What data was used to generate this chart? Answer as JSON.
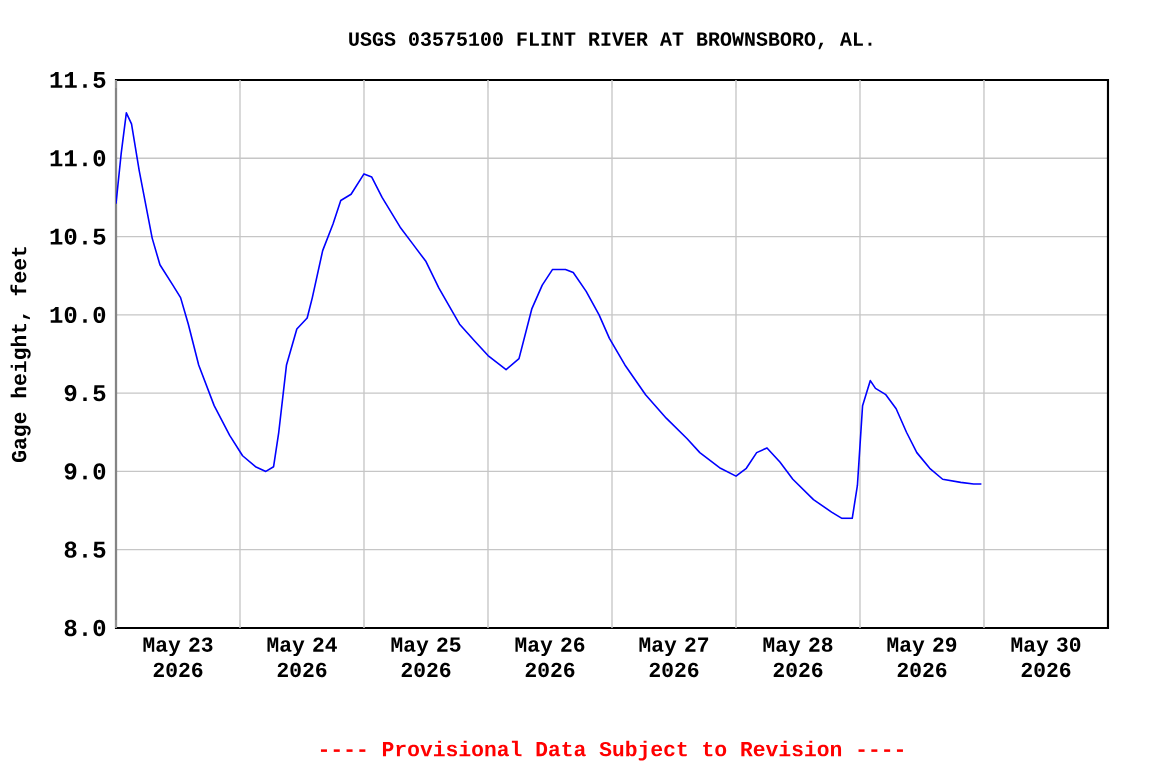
{
  "chart_data": {
    "type": "line",
    "title": "USGS 03575100 FLINT RIVER AT BROWNSBORO, AL.",
    "ylabel": "Gage height, feet",
    "annotations": [
      "---- Provisional Data Subject to Revision ----"
    ],
    "x": [
      "2026-05-23T00:00",
      "2026-05-23T01:00",
      "2026-05-23T02:00",
      "2026-05-23T03:00",
      "2026-05-23T04:30",
      "2026-05-23T07:00",
      "2026-05-23T08:30",
      "2026-05-23T11:00",
      "2026-05-23T12:30",
      "2026-05-23T14:00",
      "2026-05-23T16:00",
      "2026-05-23T19:00",
      "2026-05-23T22:00",
      "2026-05-24T00:30",
      "2026-05-24T03:00",
      "2026-05-24T05:00",
      "2026-05-24T06:30",
      "2026-05-24T07:30",
      "2026-05-24T09:00",
      "2026-05-24T11:00",
      "2026-05-24T13:00",
      "2026-05-24T14:00",
      "2026-05-24T16:00",
      "2026-05-24T18:00",
      "2026-05-24T19:30",
      "2026-05-24T21:30",
      "2026-05-25T00:00",
      "2026-05-25T01:30",
      "2026-05-25T03:30",
      "2026-05-25T07:00",
      "2026-05-25T09:30",
      "2026-05-25T12:00",
      "2026-05-25T14:30",
      "2026-05-25T18:30",
      "2026-05-25T21:30",
      "2026-05-26T00:00",
      "2026-05-26T03:30",
      "2026-05-26T06:00",
      "2026-05-26T08:30",
      "2026-05-26T10:30",
      "2026-05-26T12:30",
      "2026-05-26T15:00",
      "2026-05-26T16:30",
      "2026-05-26T19:00",
      "2026-05-26T21:30",
      "2026-05-26T23:30",
      "2026-05-27T02:30",
      "2026-05-27T06:30",
      "2026-05-27T10:30",
      "2026-05-27T14:30",
      "2026-05-27T17:00",
      "2026-05-27T21:00",
      "2026-05-28T00:00",
      "2026-05-28T02:00",
      "2026-05-28T04:00",
      "2026-05-28T06:00",
      "2026-05-28T08:30",
      "2026-05-28T11:00",
      "2026-05-28T15:00",
      "2026-05-28T18:30",
      "2026-05-28T20:30",
      "2026-05-28T22:30",
      "2026-05-28T23:30",
      "2026-05-29T00:30",
      "2026-05-29T02:00",
      "2026-05-29T03:00",
      "2026-05-29T05:00",
      "2026-05-29T07:00",
      "2026-05-29T09:00",
      "2026-05-29T11:00",
      "2026-05-29T13:30",
      "2026-05-29T16:00",
      "2026-05-29T19:30",
      "2026-05-29T22:00",
      "2026-05-29T23:30"
    ],
    "series": [
      {
        "color": "#0000ff",
        "values": [
          10.71,
          11.03,
          11.29,
          11.22,
          10.92,
          10.49,
          10.32,
          10.19,
          10.11,
          9.94,
          9.68,
          9.42,
          9.23,
          9.1,
          9.03,
          9.0,
          9.03,
          9.25,
          9.68,
          9.91,
          9.98,
          10.11,
          10.41,
          10.58,
          10.73,
          10.77,
          10.9,
          10.88,
          10.75,
          10.56,
          10.45,
          10.34,
          10.17,
          9.94,
          9.83,
          9.74,
          9.65,
          9.72,
          10.04,
          10.19,
          10.29,
          10.29,
          10.27,
          10.15,
          10.0,
          9.85,
          9.68,
          9.49,
          9.34,
          9.21,
          9.12,
          9.02,
          8.97,
          9.02,
          9.12,
          9.15,
          9.06,
          8.95,
          8.82,
          8.74,
          8.7,
          8.7,
          8.91,
          9.42,
          9.58,
          9.53,
          9.49,
          9.4,
          9.25,
          9.12,
          9.02,
          8.95,
          8.93,
          8.92,
          8.92
        ]
      }
    ],
    "xlim": [
      "2026-05-23T00:00",
      "2026-05-31T00:00"
    ],
    "xticks": [
      {
        "value": "2026-05-23T00:00",
        "label": null
      },
      {
        "value": "2026-05-24T00:00",
        "label": null
      },
      {
        "value": "2026-05-25T00:00",
        "label": null
      },
      {
        "value": "2026-05-26T00:00",
        "label": null
      },
      {
        "value": "2026-05-27T00:00",
        "label": null
      },
      {
        "value": "2026-05-28T00:00",
        "label": null
      },
      {
        "value": "2026-05-29T00:00",
        "label": null
      },
      {
        "value": "2026-05-30T00:00",
        "label": null
      },
      {
        "value": "2026-05-23T12:00",
        "label": "May 23 2026"
      },
      {
        "value": "2026-05-24T12:00",
        "label": "May 24 2026"
      },
      {
        "value": "2026-05-25T12:00",
        "label": "May 25 2026"
      },
      {
        "value": "2026-05-26T12:00",
        "label": "May 26 2026"
      },
      {
        "value": "2026-05-27T12:00",
        "label": "May 27 2026"
      },
      {
        "value": "2026-05-28T12:00",
        "label": "May 28 2026"
      },
      {
        "value": "2026-05-29T12:00",
        "label": "May 29 2026"
      },
      {
        "value": "2026-05-30T12:00",
        "label": "May 30 2026"
      }
    ],
    "ylim": [
      8.0,
      11.5
    ],
    "yticks": [
      {
        "value": 8.0,
        "label": "8.0"
      },
      {
        "value": 8.5,
        "label": "8.5"
      },
      {
        "value": 9.0,
        "label": "9.0"
      },
      {
        "value": 9.5,
        "label": "9.5"
      },
      {
        "value": 10.0,
        "label": "10.0"
      },
      {
        "value": 10.5,
        "label": "10.5"
      },
      {
        "value": 11.0,
        "label": "11.0"
      },
      {
        "value": 11.5,
        "label": "11.5"
      }
    ],
    "grid": true
  }
}
